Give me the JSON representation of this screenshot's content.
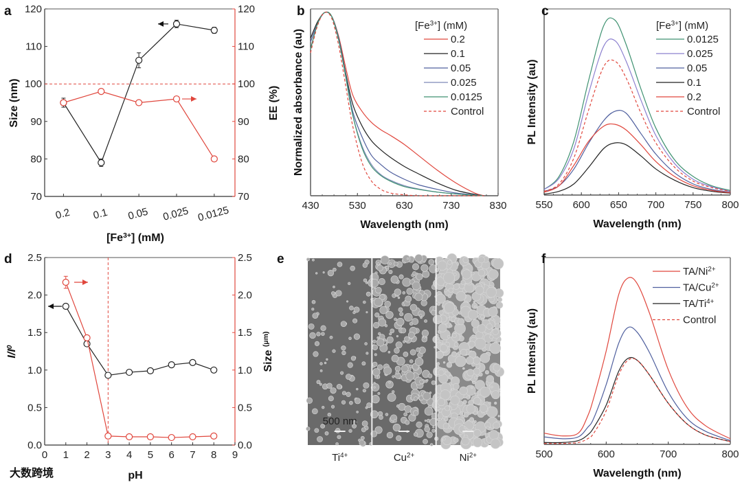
{
  "colors": {
    "red": "#e0463c",
    "black": "#222222",
    "blue": "#4f5f9e",
    "lightblue": "#7d89b8",
    "purple": "#8c80cf",
    "green": "#3e9170"
  },
  "watermark": "大数跨境",
  "chart_data": [
    {
      "panel": "a",
      "type": "line",
      "categories": [
        "0.2",
        "0.1",
        "0.05",
        "0.025",
        "0.0125"
      ],
      "xlabel_parts": [
        "[Fe",
        "3+",
        "] (mM)"
      ],
      "ylabel": "Size (nm)",
      "ylim": [
        70,
        120
      ],
      "yticks": [
        70,
        80,
        90,
        100,
        110,
        120
      ],
      "y2label": "EE (%)",
      "y2lim": [
        70,
        120
      ],
      "y2ticks": [
        70,
        80,
        90,
        100,
        110,
        120
      ],
      "reference_line_y2": 100,
      "series": [
        {
          "name": "Size",
          "axis": "left",
          "color": "#222222",
          "values": [
            95,
            79,
            106.3,
            116,
            114.3
          ],
          "errors": [
            1.2,
            1.0,
            2.0,
            1.0,
            0.8
          ]
        },
        {
          "name": "EE",
          "axis": "right",
          "color": "#e0463c",
          "values": [
            95,
            98,
            95,
            96,
            80
          ]
        }
      ]
    },
    {
      "panel": "b",
      "type": "line",
      "xlabel": "Wavelength (nm)",
      "ylabel": "Normalized absorbance (au)",
      "xlim": [
        430,
        830
      ],
      "xticks": [
        430,
        530,
        630,
        730,
        830
      ],
      "ylim": [
        0,
        1.02
      ],
      "legend_title_parts": [
        "[Fe",
        "3+",
        "] (mM)"
      ],
      "legend": "top-right",
      "x": [
        430,
        445,
        460,
        475,
        490,
        505,
        520,
        540,
        560,
        580,
        600,
        630,
        660,
        700,
        740,
        780,
        800
      ],
      "series": [
        {
          "name": "0.2",
          "color": "#e0463c",
          "dash": false,
          "values": [
            0.8,
            0.94,
            1.0,
            0.98,
            0.87,
            0.7,
            0.55,
            0.46,
            0.4,
            0.36,
            0.33,
            0.28,
            0.22,
            0.14,
            0.07,
            0.015,
            0
          ]
        },
        {
          "name": "0.1",
          "color": "#222222",
          "dash": false,
          "values": [
            0.86,
            0.95,
            1.0,
            0.98,
            0.86,
            0.67,
            0.5,
            0.38,
            0.3,
            0.25,
            0.21,
            0.16,
            0.12,
            0.07,
            0.03,
            0.008,
            0
          ]
        },
        {
          "name": "0.05",
          "color": "#4f5f9e",
          "dash": false,
          "values": [
            0.84,
            0.94,
            1.0,
            0.98,
            0.86,
            0.66,
            0.46,
            0.32,
            0.22,
            0.17,
            0.13,
            0.09,
            0.06,
            0.035,
            0.015,
            0.005,
            0
          ]
        },
        {
          "name": "0.025",
          "color": "#7d89b8",
          "dash": false,
          "values": [
            0.8,
            0.94,
            1.0,
            0.98,
            0.85,
            0.65,
            0.44,
            0.27,
            0.17,
            0.115,
            0.085,
            0.055,
            0.037,
            0.02,
            0.01,
            0.003,
            0
          ]
        },
        {
          "name": "0.0125",
          "color": "#3e9170",
          "dash": false,
          "values": [
            0.8,
            0.94,
            1.0,
            0.98,
            0.85,
            0.65,
            0.44,
            0.26,
            0.16,
            0.11,
            0.08,
            0.05,
            0.035,
            0.02,
            0.01,
            0.003,
            0
          ]
        },
        {
          "name": "Control",
          "color": "#e0463c",
          "dash": true,
          "values": [
            0.78,
            0.93,
            1.0,
            0.97,
            0.82,
            0.6,
            0.38,
            0.18,
            0.08,
            0.035,
            0.015,
            0.005,
            0,
            0,
            0,
            0,
            0
          ]
        }
      ]
    },
    {
      "panel": "c",
      "type": "line",
      "xlabel": "Wavelength (nm)",
      "ylabel": "PL Intensity (au)",
      "xlim": [
        550,
        800
      ],
      "xticks": [
        550,
        600,
        650,
        700,
        750,
        800
      ],
      "ylim": [
        0,
        1
      ],
      "legend_title_parts": [
        "[Fe",
        "3+",
        "] (mM)"
      ],
      "legend": "top-right",
      "x": [
        550,
        570,
        590,
        610,
        630,
        645,
        660,
        680,
        700,
        725,
        750,
        775,
        800
      ],
      "series": [
        {
          "name": "0.0125",
          "color": "#3e9170",
          "dash": false,
          "values": [
            0.03,
            0.1,
            0.29,
            0.62,
            0.91,
            0.94,
            0.81,
            0.57,
            0.36,
            0.19,
            0.1,
            0.05,
            0.025
          ]
        },
        {
          "name": "0.025",
          "color": "#8c80cf",
          "dash": false,
          "values": [
            0.03,
            0.09,
            0.25,
            0.55,
            0.8,
            0.83,
            0.72,
            0.51,
            0.32,
            0.17,
            0.085,
            0.045,
            0.02
          ]
        },
        {
          "name": "0.05",
          "color": "#4f5f9e",
          "dash": false,
          "values": [
            0.02,
            0.05,
            0.14,
            0.28,
            0.4,
            0.45,
            0.44,
            0.33,
            0.22,
            0.12,
            0.06,
            0.03,
            0.015
          ]
        },
        {
          "name": "0.1",
          "color": "#222222",
          "dash": false,
          "values": [
            0.005,
            0.02,
            0.06,
            0.15,
            0.25,
            0.28,
            0.27,
            0.21,
            0.14,
            0.08,
            0.04,
            0.02,
            0.01
          ]
        },
        {
          "name": "0.2",
          "color": "#e0463c",
          "dash": false,
          "values": [
            0.015,
            0.05,
            0.16,
            0.29,
            0.37,
            0.38,
            0.35,
            0.27,
            0.18,
            0.1,
            0.05,
            0.025,
            0.012
          ]
        },
        {
          "name": "Control",
          "color": "#e0463c",
          "dash": true,
          "values": [
            0.02,
            0.06,
            0.2,
            0.46,
            0.69,
            0.72,
            0.63,
            0.44,
            0.28,
            0.15,
            0.075,
            0.04,
            0.02
          ]
        }
      ]
    },
    {
      "panel": "d",
      "type": "line",
      "xlabel": "pH",
      "xlim": [
        0,
        9
      ],
      "xticks": [
        0,
        1,
        2,
        3,
        4,
        5,
        6,
        7,
        8,
        9
      ],
      "ylabel_parts": [
        "I/I",
        "0"
      ],
      "ylim": [
        0,
        2.5
      ],
      "yticks": [
        "0.0",
        "0.5",
        "1.0",
        "1.5",
        "2.0",
        "2.5"
      ],
      "y2label_parts": [
        "Size ",
        "(μm)"
      ],
      "y2lim": [
        0,
        2.5
      ],
      "y2ticks": [
        "0.0",
        "0.5",
        "1.0",
        "1.5",
        "2.0",
        "2.5"
      ],
      "reference_line_x": 3,
      "x": [
        1,
        2,
        3,
        4,
        5,
        6,
        7,
        8
      ],
      "series": [
        {
          "name": "I/I0",
          "axis": "left",
          "color": "#222222",
          "values": [
            1.85,
            1.35,
            0.93,
            0.97,
            0.99,
            1.07,
            1.1,
            1.0
          ]
        },
        {
          "name": "Size",
          "axis": "right",
          "color": "#e0463c",
          "values": [
            2.17,
            1.43,
            0.12,
            0.11,
            0.11,
            0.1,
            0.11,
            0.12
          ],
          "errors": [
            0.08,
            0.03,
            0.02,
            0.02,
            0.02,
            0.02,
            0.02,
            0.02
          ]
        }
      ]
    },
    {
      "panel": "f",
      "type": "line",
      "xlabel": "Wavelength (nm)",
      "ylabel": "PL Intensity (au)",
      "xlim": [
        500,
        800
      ],
      "xticks": [
        500,
        600,
        700,
        800
      ],
      "ylim": [
        0,
        1
      ],
      "legend": "top-right",
      "x": [
        500,
        530,
        555,
        570,
        580,
        600,
        620,
        635,
        650,
        670,
        700,
        730,
        760,
        800
      ],
      "series": [
        {
          "name_parts": [
            "TA/Ni",
            "2+"
          ],
          "color": "#e0463c",
          "dash": false,
          "values": [
            0.06,
            0.045,
            0.06,
            0.15,
            0.25,
            0.5,
            0.8,
            0.89,
            0.86,
            0.7,
            0.4,
            0.2,
            0.1,
            0.03
          ]
        },
        {
          "name_parts": [
            "TA/Cu",
            "2+"
          ],
          "color": "#4f5f9e",
          "dash": false,
          "values": [
            0.04,
            0.03,
            0.04,
            0.09,
            0.14,
            0.32,
            0.54,
            0.625,
            0.6,
            0.49,
            0.28,
            0.14,
            0.07,
            0.02
          ]
        },
        {
          "name_parts": [
            "TA/Ti",
            "4+"
          ],
          "color": "#222222",
          "dash": false,
          "values": [
            0.01,
            0.01,
            0.02,
            0.05,
            0.09,
            0.21,
            0.39,
            0.46,
            0.45,
            0.37,
            0.22,
            0.11,
            0.05,
            0.015
          ]
        },
        {
          "name_parts": [
            "Control",
            ""
          ],
          "color": "#e0463c",
          "dash": true,
          "values": [
            0.005,
            0.005,
            0.01,
            0.03,
            0.06,
            0.18,
            0.37,
            0.45,
            0.45,
            0.37,
            0.22,
            0.11,
            0.05,
            0.015
          ]
        }
      ]
    }
  ],
  "sem_panel": {
    "panel": "e",
    "scale_bar": "500 nm",
    "images": [
      {
        "label_parts": [
          "Ti",
          "4+"
        ],
        "density": 0.25
      },
      {
        "label_parts": [
          "Cu",
          "2+"
        ],
        "density": 0.6
      },
      {
        "label_parts": [
          "Ni",
          "2+"
        ],
        "density": 1.0
      }
    ]
  },
  "panel_labels": [
    "a",
    "b",
    "c",
    "d",
    "e",
    "f"
  ]
}
